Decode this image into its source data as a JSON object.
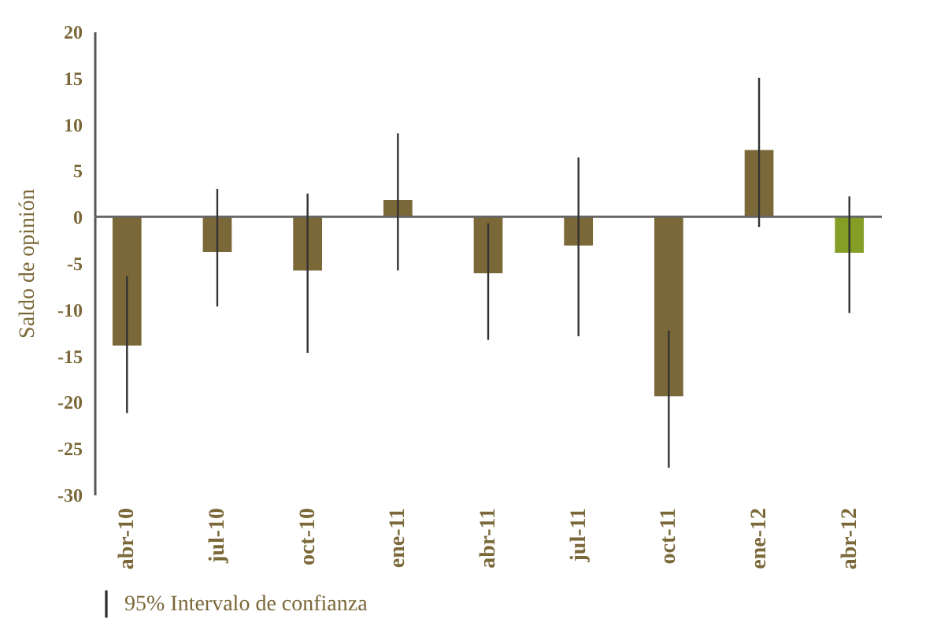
{
  "chart_data": {
    "type": "bar",
    "ylabel": "Saldo de opinión",
    "categories": [
      "abr-10",
      "jul-10",
      "oct-10",
      "ene-11",
      "abr-11",
      "jul-11",
      "oct-11",
      "ene-12",
      "abr-12"
    ],
    "values": [
      -13.9,
      -3.8,
      -5.8,
      1.8,
      -6.1,
      -3.1,
      -19.4,
      7.2,
      -3.9
    ],
    "colors": [
      "#7b6839",
      "#7b6839",
      "#7b6839",
      "#7b6839",
      "#7b6839",
      "#7b6839",
      "#7b6839",
      "#7b6839",
      "#849e26"
    ],
    "errors": [
      [
        -21.2,
        -6.4
      ],
      [
        -9.7,
        3.0
      ],
      [
        -14.7,
        2.5
      ],
      [
        -5.8,
        9.0
      ],
      [
        -13.3,
        -0.7
      ],
      [
        -12.9,
        6.4
      ],
      [
        -27.1,
        -12.3
      ],
      [
        -1.1,
        15.0
      ],
      [
        -10.4,
        2.2
      ]
    ],
    "ylim": [
      -30,
      20
    ],
    "yticks": [
      -30,
      -25,
      -20,
      -15,
      -10,
      -5,
      0,
      5,
      10,
      15,
      20
    ],
    "ref_lines": [
      {
        "axis": "y",
        "value": 0,
        "color": "#666666"
      }
    ],
    "annotations": [
      "95% Intervalo de confianza"
    ]
  }
}
